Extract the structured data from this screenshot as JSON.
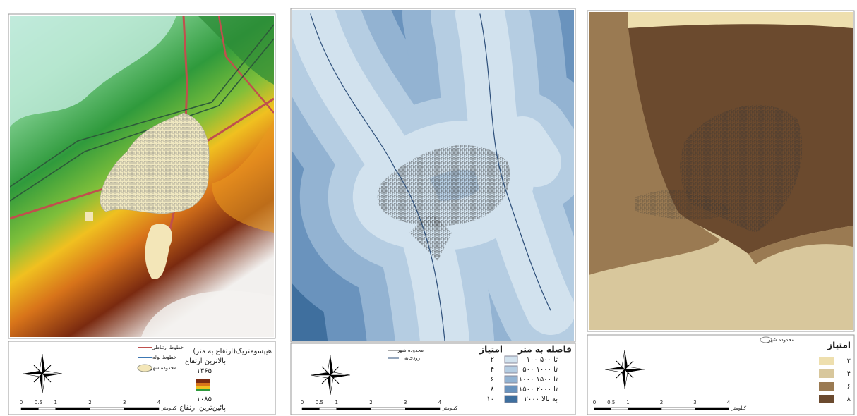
{
  "panels": [
    {
      "legend": {
        "title": "هیپسومتریک(ارتفاع به متر)",
        "lines": [
          "خطوط ارتباطی",
          "خطوط لوله",
          "محدوده شهر"
        ],
        "high_label": "بالاترین ارتفاع",
        "high": "۱۳۶۵",
        "low": "۱۰۸۵",
        "low_label": "پائین‌ترین ارتفاع"
      },
      "scale": {
        "labels": [
          "0",
          "0.5",
          "1",
          "2",
          "3",
          "4"
        ],
        "unit": "کیلومتر"
      }
    },
    {
      "legend": {
        "distance_title": "فاصله به متر",
        "score_title": "امتیاز",
        "rows": [
          [
            "۱۰۰ تا ۵۰۰",
            "۲"
          ],
          [
            "۵۰۰ تا ۱۰۰۰",
            "۴"
          ],
          [
            "۱۰۰۰ تا ۱۵۰۰",
            "۶"
          ],
          [
            "۱۵۰۰ تا ۲۰۰۰",
            "۸"
          ],
          [
            "۲۰۰۰ به بالا",
            "۱۰"
          ]
        ],
        "lines": [
          "محدوده شهر",
          "رودخانه"
        ]
      },
      "scale": {
        "labels": [
          "0",
          "0.5",
          "1",
          "2",
          "3",
          "4"
        ],
        "unit": "کیلومتر"
      }
    },
    {
      "legend": {
        "score_title": "امتیاز",
        "rows": [
          "۲",
          "۴",
          "۶",
          "۸"
        ],
        "lines": [
          "محدوده شهر"
        ]
      },
      "scale": {
        "labels": [
          "0",
          "0.5",
          "1",
          "2",
          "3",
          "4"
        ],
        "unit": "کیلومتر"
      }
    }
  ]
}
